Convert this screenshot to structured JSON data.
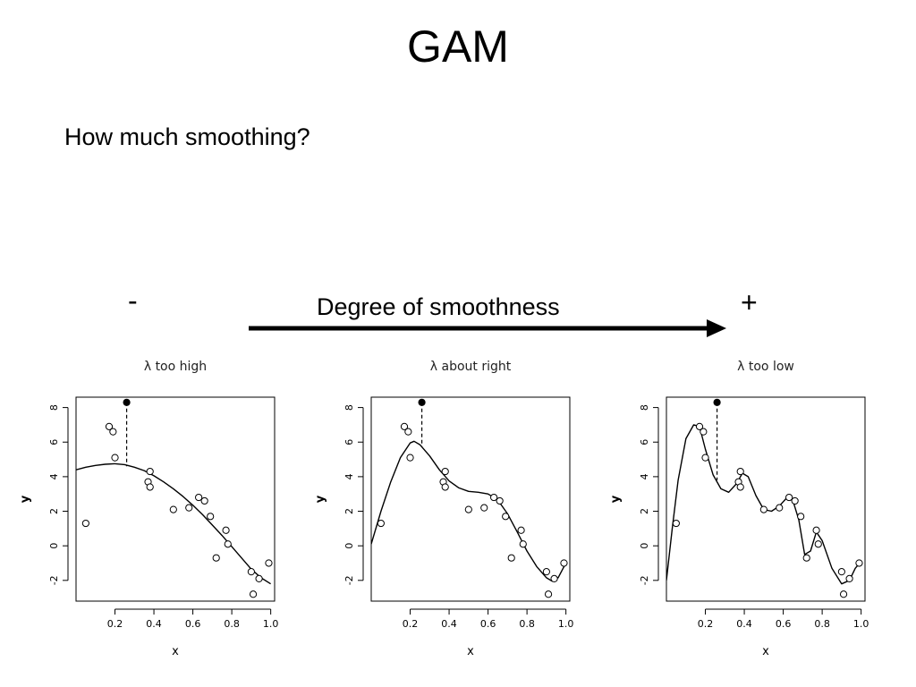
{
  "slide": {
    "title": "GAM",
    "question": "How much smoothing?",
    "minus": "-",
    "plus": "+",
    "arrow_label": "Degree of smoothness",
    "colors": {
      "text": "#000000",
      "background": "#ffffff"
    }
  },
  "chart_data": [
    {
      "type": "scatter",
      "title": "λ too high",
      "xlabel": "x",
      "ylabel": "y",
      "xlim": [
        0.0,
        1.02
      ],
      "ylim": [
        -3.2,
        8.6
      ],
      "xticks": [
        0.2,
        0.4,
        0.6,
        0.8,
        1.0
      ],
      "xtick_labels": [
        "0.2",
        "0.4",
        "0.6",
        "0.8",
        "1.0"
      ],
      "yticks": [
        -2,
        0,
        2,
        4,
        6,
        8
      ],
      "ytick_labels": [
        "-2",
        "0",
        "2",
        "4",
        "6",
        "8"
      ],
      "points": [
        [
          0.05,
          1.3
        ],
        [
          0.17,
          6.9
        ],
        [
          0.19,
          6.6
        ],
        [
          0.2,
          5.1
        ],
        [
          0.37,
          3.7
        ],
        [
          0.38,
          3.4
        ],
        [
          0.38,
          4.3
        ],
        [
          0.5,
          2.1
        ],
        [
          0.58,
          2.2
        ],
        [
          0.63,
          2.8
        ],
        [
          0.66,
          2.6
        ],
        [
          0.69,
          1.7
        ],
        [
          0.72,
          -0.7
        ],
        [
          0.77,
          0.9
        ],
        [
          0.78,
          0.1
        ],
        [
          0.9,
          -1.5
        ],
        [
          0.91,
          -2.8
        ],
        [
          0.94,
          -1.9
        ],
        [
          0.99,
          -1.0
        ]
      ],
      "highlight_point": [
        0.26,
        8.3
      ],
      "highlight_fit": 4.6,
      "fit": [
        [
          0.0,
          4.4
        ],
        [
          0.05,
          4.55
        ],
        [
          0.1,
          4.65
        ],
        [
          0.15,
          4.72
        ],
        [
          0.2,
          4.75
        ],
        [
          0.25,
          4.7
        ],
        [
          0.3,
          4.55
        ],
        [
          0.35,
          4.35
        ],
        [
          0.4,
          4.05
        ],
        [
          0.45,
          3.7
        ],
        [
          0.5,
          3.3
        ],
        [
          0.55,
          2.85
        ],
        [
          0.6,
          2.35
        ],
        [
          0.65,
          1.8
        ],
        [
          0.7,
          1.2
        ],
        [
          0.75,
          0.6
        ],
        [
          0.8,
          -0.05
        ],
        [
          0.85,
          -0.7
        ],
        [
          0.9,
          -1.35
        ],
        [
          0.95,
          -1.85
        ],
        [
          1.0,
          -2.2
        ]
      ]
    },
    {
      "type": "scatter",
      "title": "λ about right",
      "xlabel": "x",
      "ylabel": "y",
      "xlim": [
        0.0,
        1.02
      ],
      "ylim": [
        -3.2,
        8.6
      ],
      "xticks": [
        0.2,
        0.4,
        0.6,
        0.8,
        1.0
      ],
      "xtick_labels": [
        "0.2",
        "0.4",
        "0.6",
        "0.8",
        "1.0"
      ],
      "yticks": [
        -2,
        0,
        2,
        4,
        6,
        8
      ],
      "ytick_labels": [
        "-2",
        "0",
        "2",
        "4",
        "6",
        "8"
      ],
      "points": [
        [
          0.05,
          1.3
        ],
        [
          0.17,
          6.9
        ],
        [
          0.19,
          6.6
        ],
        [
          0.2,
          5.1
        ],
        [
          0.37,
          3.7
        ],
        [
          0.38,
          3.4
        ],
        [
          0.38,
          4.3
        ],
        [
          0.5,
          2.1
        ],
        [
          0.58,
          2.2
        ],
        [
          0.63,
          2.8
        ],
        [
          0.66,
          2.6
        ],
        [
          0.69,
          1.7
        ],
        [
          0.72,
          -0.7
        ],
        [
          0.77,
          0.9
        ],
        [
          0.78,
          0.1
        ],
        [
          0.9,
          -1.5
        ],
        [
          0.91,
          -2.8
        ],
        [
          0.94,
          -1.9
        ],
        [
          0.99,
          -1.0
        ]
      ],
      "highlight_point": [
        0.26,
        8.3
      ],
      "highlight_fit": 5.7,
      "fit": [
        [
          0.0,
          0.1
        ],
        [
          0.05,
          2.0
        ],
        [
          0.1,
          3.7
        ],
        [
          0.15,
          5.1
        ],
        [
          0.2,
          5.95
        ],
        [
          0.22,
          6.05
        ],
        [
          0.25,
          5.85
        ],
        [
          0.3,
          5.2
        ],
        [
          0.35,
          4.4
        ],
        [
          0.4,
          3.75
        ],
        [
          0.45,
          3.35
        ],
        [
          0.5,
          3.15
        ],
        [
          0.55,
          3.1
        ],
        [
          0.6,
          3.0
        ],
        [
          0.65,
          2.65
        ],
        [
          0.7,
          1.85
        ],
        [
          0.75,
          0.8
        ],
        [
          0.8,
          -0.3
        ],
        [
          0.85,
          -1.2
        ],
        [
          0.9,
          -1.85
        ],
        [
          0.93,
          -2.05
        ],
        [
          0.96,
          -1.85
        ],
        [
          1.0,
          -1.0
        ]
      ]
    },
    {
      "type": "scatter",
      "title": "λ too low",
      "xlabel": "x",
      "ylabel": "y",
      "xlim": [
        0.0,
        1.02
      ],
      "ylim": [
        -3.2,
        8.6
      ],
      "xticks": [
        0.2,
        0.4,
        0.6,
        0.8,
        1.0
      ],
      "xtick_labels": [
        "0.2",
        "0.4",
        "0.6",
        "0.8",
        "1.0"
      ],
      "yticks": [
        -2,
        0,
        2,
        4,
        6,
        8
      ],
      "ytick_labels": [
        "-2",
        "0",
        "2",
        "4",
        "6",
        "8"
      ],
      "points": [
        [
          0.05,
          1.3
        ],
        [
          0.17,
          6.9
        ],
        [
          0.19,
          6.6
        ],
        [
          0.2,
          5.1
        ],
        [
          0.37,
          3.7
        ],
        [
          0.38,
          3.4
        ],
        [
          0.38,
          4.3
        ],
        [
          0.5,
          2.1
        ],
        [
          0.58,
          2.2
        ],
        [
          0.63,
          2.8
        ],
        [
          0.66,
          2.6
        ],
        [
          0.69,
          1.7
        ],
        [
          0.72,
          -0.7
        ],
        [
          0.77,
          0.9
        ],
        [
          0.78,
          0.1
        ],
        [
          0.9,
          -1.5
        ],
        [
          0.91,
          -2.8
        ],
        [
          0.94,
          -1.9
        ],
        [
          0.99,
          -1.0
        ]
      ],
      "highlight_point": [
        0.26,
        8.3
      ],
      "highlight_fit": 3.8,
      "fit": [
        [
          0.0,
          -2.0
        ],
        [
          0.03,
          1.0
        ],
        [
          0.06,
          3.8
        ],
        [
          0.1,
          6.2
        ],
        [
          0.14,
          7.0
        ],
        [
          0.17,
          6.9
        ],
        [
          0.2,
          5.6
        ],
        [
          0.24,
          4.1
        ],
        [
          0.28,
          3.3
        ],
        [
          0.32,
          3.1
        ],
        [
          0.36,
          3.6
        ],
        [
          0.39,
          4.2
        ],
        [
          0.42,
          4.0
        ],
        [
          0.46,
          2.9
        ],
        [
          0.5,
          2.1
        ],
        [
          0.54,
          2.0
        ],
        [
          0.58,
          2.3
        ],
        [
          0.62,
          2.8
        ],
        [
          0.65,
          2.6
        ],
        [
          0.68,
          1.5
        ],
        [
          0.71,
          -0.5
        ],
        [
          0.74,
          -0.3
        ],
        [
          0.77,
          0.8
        ],
        [
          0.8,
          0.3
        ],
        [
          0.85,
          -1.3
        ],
        [
          0.9,
          -2.2
        ],
        [
          0.94,
          -2.0
        ],
        [
          0.97,
          -1.3
        ],
        [
          1.0,
          -0.9
        ]
      ]
    }
  ]
}
